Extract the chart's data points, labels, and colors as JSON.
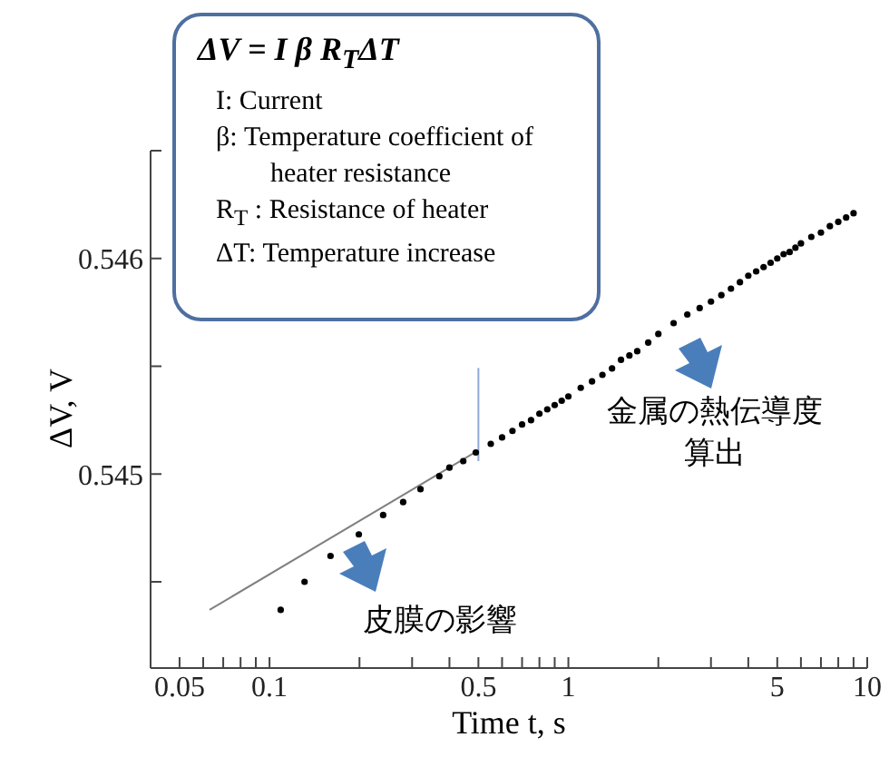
{
  "chart_data": {
    "type": "scatter",
    "xlabel": "Time t, s",
    "ylabel": "ΔV, V",
    "log": "x",
    "marker": "circle",
    "grid": false,
    "legend": false,
    "xlim": [
      0.04,
      10
    ],
    "ylim": [
      0.5441,
      0.5465
    ],
    "xticks": [
      {
        "value": 0.04,
        "label": null
      },
      0.05,
      {
        "value": 0.06,
        "label": null
      },
      {
        "value": 0.07,
        "label": null
      },
      {
        "value": 0.08,
        "label": null
      },
      {
        "value": 0.09,
        "label": null
      },
      0.1,
      {
        "value": 0.2,
        "label": null
      },
      {
        "value": 0.3,
        "label": null
      },
      {
        "value": 0.4,
        "label": null
      },
      0.5,
      {
        "value": 0.6,
        "label": null
      },
      {
        "value": 0.7,
        "label": null
      },
      {
        "value": 0.8,
        "label": null
      },
      {
        "value": 0.9,
        "label": null
      },
      1,
      {
        "value": 2,
        "label": null
      },
      {
        "value": 3,
        "label": null
      },
      {
        "value": 4,
        "label": null
      },
      5,
      {
        "value": 6,
        "label": null
      },
      {
        "value": 7,
        "label": null
      },
      {
        "value": 8,
        "label": null
      },
      {
        "value": 9,
        "label": null
      },
      10
    ],
    "yticks": [
      {
        "value": 0.5445,
        "label": null
      },
      0.545,
      {
        "value": 0.5455,
        "label": null
      },
      0.546,
      {
        "value": 0.5465,
        "label": null
      }
    ],
    "series": [
      {
        "color": "#000000",
        "x": [
          0.109,
          0.131,
          0.16,
          0.199,
          0.24,
          0.28,
          0.32,
          0.37,
          0.4,
          0.445,
          0.49,
          0.55,
          0.6,
          0.65,
          0.7,
          0.75,
          0.8,
          0.85,
          0.9,
          0.95,
          1,
          1.1,
          1.2,
          1.3,
          1.4,
          1.5,
          1.6,
          1.7,
          1.85,
          2,
          2.25,
          2.5,
          2.75,
          3,
          3.25,
          3.5,
          3.75,
          4,
          4.25,
          4.5,
          4.75,
          5,
          5.25,
          5.5,
          5.75,
          6,
          6.5,
          7,
          7.5,
          8,
          8.5,
          9
        ],
        "values": [
          0.54437,
          0.5445,
          0.54462,
          0.54472,
          0.54481,
          0.54487,
          0.54493,
          0.54499,
          0.54503,
          0.54506,
          0.5451,
          0.54514,
          0.54517,
          0.5452,
          0.54523,
          0.54525,
          0.54528,
          0.5453,
          0.54532,
          0.54534,
          0.54536,
          0.5454,
          0.54543,
          0.54546,
          0.54549,
          0.54553,
          0.54555,
          0.54557,
          0.54561,
          0.54565,
          0.5457,
          0.54574,
          0.54577,
          0.5458,
          0.54583,
          0.54586,
          0.54589,
          0.54592,
          0.54594,
          0.54596,
          0.54598,
          0.546,
          0.54602,
          0.54603,
          0.54605,
          0.54607,
          0.5461,
          0.54612,
          0.54615,
          0.54617,
          0.54619,
          0.54621
        ]
      },
      {
        "type": "line",
        "color": "#808080",
        "marker": "none",
        "x": [
          0.063,
          0.5
        ],
        "values": [
          0.54437,
          0.54511
        ]
      }
    ],
    "ref_lines": [
      {
        "axis": "x",
        "value": 0.5,
        "color": "#8eaadb"
      }
    ],
    "annotations": [
      "ΔV = I β R$_{T}$ΔT",
      "I: Current",
      "β: Temperature coefficient of heater resistance",
      "R$_{T}$ : Resistance of heater",
      "ΔT: Temperature increase",
      "金属の熱伝導度算出",
      "皮膜の影響"
    ]
  }
}
